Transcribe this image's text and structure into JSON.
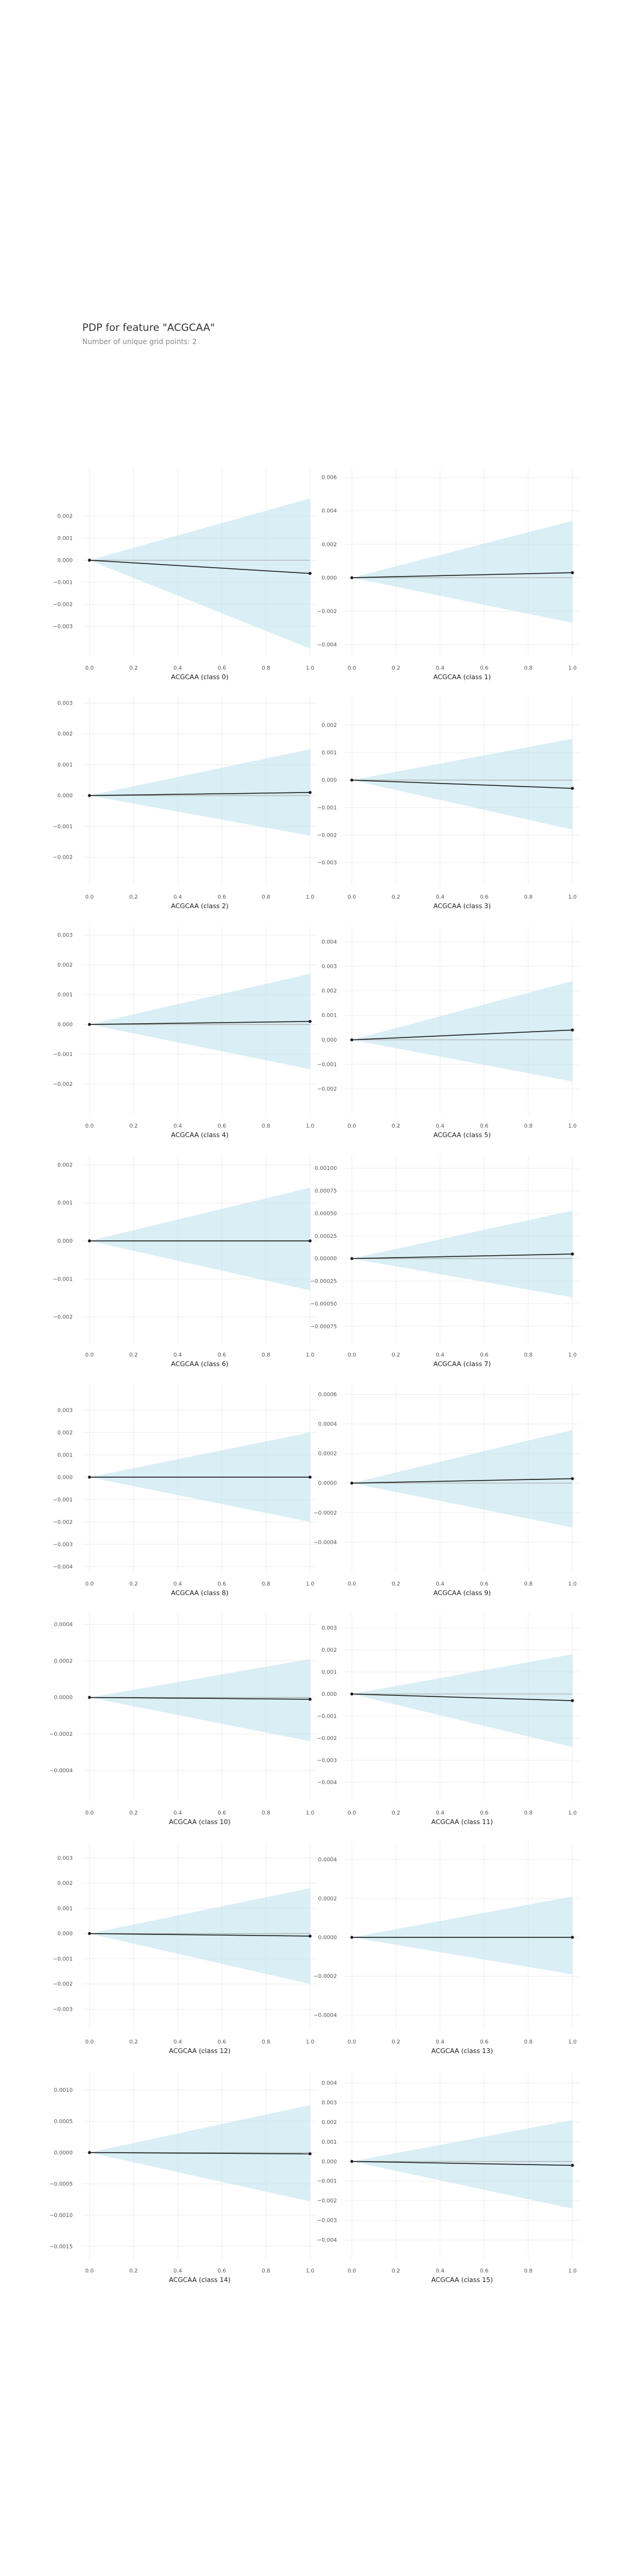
{
  "header": {
    "title": "PDP for feature \"ACGCAA\"",
    "subtitle": "Number of unique grid points: 2"
  },
  "colors": {
    "band": "#bfe2ee",
    "line": "#1a1a1a",
    "reference": "#b0b0b0",
    "grid": "#eeeeee"
  },
  "chart_data": [
    {
      "type": "line",
      "xlabel": "ACGCAA (class 0)",
      "x": [
        0,
        1
      ],
      "values": [
        0,
        -0.0006
      ],
      "upper": [
        0,
        0.0028
      ],
      "lower": [
        0,
        -0.004
      ],
      "ylim": [
        -0.0042,
        0.0039
      ],
      "yticks": [
        0.002,
        0.001,
        0.0,
        -0.001,
        -0.002,
        -0.003
      ],
      "ytick_labels": [
        "0.002",
        "0.001",
        "0.000",
        "−0.001",
        "−0.002",
        "−0.003"
      ],
      "xticks": [
        0,
        0.2,
        0.4,
        0.6,
        0.8,
        1.0
      ],
      "xtick_labels": [
        "0.0",
        "0.2",
        "0.4",
        "0.6",
        "0.8",
        "1.0"
      ]
    },
    {
      "type": "line",
      "xlabel": "ACGCAA (class 1)",
      "x": [
        0,
        1
      ],
      "values": [
        0,
        0.0003
      ],
      "upper": [
        0,
        0.0034
      ],
      "lower": [
        0,
        -0.0027
      ],
      "ylim": [
        -0.0045,
        0.0062
      ],
      "yticks": [
        0.006,
        0.004,
        0.002,
        0.0,
        -0.002,
        -0.004
      ],
      "ytick_labels": [
        "0.006",
        "0.004",
        "0.002",
        "0.000",
        "−0.002",
        "−0.004"
      ],
      "xticks": [
        0,
        0.2,
        0.4,
        0.6,
        0.8,
        1.0
      ],
      "xtick_labels": [
        "0.0",
        "0.2",
        "0.4",
        "0.6",
        "0.8",
        "1.0"
      ]
    },
    {
      "type": "line",
      "xlabel": "ACGCAA (class 2)",
      "x": [
        0,
        1
      ],
      "values": [
        0,
        0.0001
      ],
      "upper": [
        0,
        0.0015
      ],
      "lower": [
        0,
        -0.0013
      ],
      "ylim": [
        -0.0028,
        0.003
      ],
      "yticks": [
        0.003,
        0.002,
        0.001,
        0.0,
        -0.001,
        -0.002
      ],
      "ytick_labels": [
        "0.003",
        "0.002",
        "0.001",
        "0.000",
        "−0.001",
        "−0.002"
      ],
      "xticks": [
        0,
        0.2,
        0.4,
        0.6,
        0.8,
        1.0
      ],
      "xtick_labels": [
        "0.0",
        "0.2",
        "0.4",
        "0.6",
        "0.8",
        "1.0"
      ]
    },
    {
      "type": "line",
      "xlabel": "ACGCAA (class 3)",
      "x": [
        0,
        1
      ],
      "values": [
        0,
        -0.0003
      ],
      "upper": [
        0,
        0.0015
      ],
      "lower": [
        0,
        -0.0018
      ],
      "ylim": [
        -0.0037,
        0.0028
      ],
      "yticks": [
        0.002,
        0.001,
        0.0,
        -0.001,
        -0.002,
        -0.003
      ],
      "ytick_labels": [
        "0.002",
        "0.001",
        "0.000",
        "−0.001",
        "−0.002",
        "−0.003"
      ],
      "xticks": [
        0,
        0.2,
        0.4,
        0.6,
        0.8,
        1.0
      ],
      "xtick_labels": [
        "0.0",
        "0.2",
        "0.4",
        "0.6",
        "0.8",
        "1.0"
      ]
    },
    {
      "type": "line",
      "xlabel": "ACGCAA (class 4)",
      "x": [
        0,
        1
      ],
      "values": [
        0,
        0.0001
      ],
      "upper": [
        0,
        0.0017
      ],
      "lower": [
        0,
        -0.0015
      ],
      "ylim": [
        -0.0029,
        0.0031
      ],
      "yticks": [
        0.003,
        0.002,
        0.001,
        0.0,
        -0.001,
        -0.002
      ],
      "ytick_labels": [
        "0.003",
        "0.002",
        "0.001",
        "0.000",
        "−0.001",
        "−0.002"
      ],
      "xticks": [
        0,
        0.2,
        0.4,
        0.6,
        0.8,
        1.0
      ],
      "xtick_labels": [
        "0.0",
        "0.2",
        "0.4",
        "0.6",
        "0.8",
        "1.0"
      ]
    },
    {
      "type": "line",
      "xlabel": "ACGCAA (class 5)",
      "x": [
        0,
        1
      ],
      "values": [
        0,
        0.0004
      ],
      "upper": [
        0,
        0.0024
      ],
      "lower": [
        0,
        -0.0017
      ],
      "ylim": [
        -0.0029,
        0.0044
      ],
      "yticks": [
        0.004,
        0.003,
        0.002,
        0.001,
        0.0,
        -0.001,
        -0.002
      ],
      "ytick_labels": [
        "0.004",
        "0.003",
        "0.002",
        "0.001",
        "0.000",
        "−0.001",
        "−0.002"
      ],
      "xticks": [
        0,
        0.2,
        0.4,
        0.6,
        0.8,
        1.0
      ],
      "xtick_labels": [
        "0.0",
        "0.2",
        "0.4",
        "0.6",
        "0.8",
        "1.0"
      ]
    },
    {
      "type": "line",
      "xlabel": "ACGCAA (class 6)",
      "x": [
        0,
        1
      ],
      "values": [
        0,
        0.0
      ],
      "upper": [
        0,
        0.0014
      ],
      "lower": [
        0,
        -0.0013
      ],
      "ylim": [
        -0.0026,
        0.0021
      ],
      "yticks": [
        0.002,
        0.001,
        0.0,
        -0.001,
        -0.002
      ],
      "ytick_labels": [
        "0.002",
        "0.001",
        "0.000",
        "−0.001",
        "−0.002"
      ],
      "xticks": [
        0,
        0.2,
        0.4,
        0.6,
        0.8,
        1.0
      ],
      "xtick_labels": [
        "0.0",
        "0.2",
        "0.4",
        "0.6",
        "0.8",
        "1.0"
      ]
    },
    {
      "type": "line",
      "xlabel": "ACGCAA (class 7)",
      "x": [
        0,
        1
      ],
      "values": [
        0,
        5e-05
      ],
      "upper": [
        0,
        0.00053
      ],
      "lower": [
        0,
        -0.00043
      ],
      "ylim": [
        -0.0009,
        0.00108
      ],
      "yticks": [
        0.001,
        0.00075,
        0.0005,
        0.00025,
        0.0,
        -0.00025,
        -0.0005,
        -0.00075
      ],
      "ytick_labels": [
        "0.00100",
        "0.00075",
        "0.00050",
        "0.00025",
        "0.00000",
        "−0.00025",
        "−0.00050",
        "−0.00075"
      ],
      "xticks": [
        0,
        0.2,
        0.4,
        0.6,
        0.8,
        1.0
      ],
      "xtick_labels": [
        "0.0",
        "0.2",
        "0.4",
        "0.6",
        "0.8",
        "1.0"
      ]
    },
    {
      "type": "line",
      "xlabel": "ACGCAA (class 8)",
      "x": [
        0,
        1
      ],
      "values": [
        0,
        0.0
      ],
      "upper": [
        0,
        0.002
      ],
      "lower": [
        0,
        -0.002
      ],
      "ylim": [
        -0.0041,
        0.0039
      ],
      "yticks": [
        0.003,
        0.002,
        0.001,
        0.0,
        -0.001,
        -0.002,
        -0.003,
        -0.004
      ],
      "ytick_labels": [
        "0.003",
        "0.002",
        "0.001",
        "0.000",
        "−0.001",
        "−0.002",
        "−0.003",
        "−0.004"
      ],
      "xticks": [
        0,
        0.2,
        0.4,
        0.6,
        0.8,
        1.0
      ],
      "xtick_labels": [
        "0.0",
        "0.2",
        "0.4",
        "0.6",
        "0.8",
        "1.0"
      ]
    },
    {
      "type": "line",
      "xlabel": "ACGCAA (class 9)",
      "x": [
        0,
        1
      ],
      "values": [
        0,
        3e-05
      ],
      "upper": [
        0,
        0.00036
      ],
      "lower": [
        0,
        -0.0003
      ],
      "ylim": [
        -0.00058,
        0.00063
      ],
      "yticks": [
        0.0006,
        0.0004,
        0.0002,
        0.0,
        -0.0002,
        -0.0004
      ],
      "ytick_labels": [
        "0.0006",
        "0.0004",
        "0.0002",
        "0.0000",
        "−0.0002",
        "−0.0004"
      ],
      "xticks": [
        0,
        0.2,
        0.4,
        0.6,
        0.8,
        1.0
      ],
      "xtick_labels": [
        "0.0",
        "0.2",
        "0.4",
        "0.6",
        "0.8",
        "1.0"
      ]
    },
    {
      "type": "line",
      "xlabel": "ACGCAA (class 10)",
      "x": [
        0,
        1
      ],
      "values": [
        0,
        -1e-05
      ],
      "upper": [
        0,
        0.00021
      ],
      "lower": [
        0,
        -0.00024
      ],
      "ylim": [
        -0.00055,
        0.00043
      ],
      "yticks": [
        0.0004,
        0.0002,
        0.0,
        -0.0002,
        -0.0004
      ],
      "ytick_labels": [
        "0.0004",
        "0.0002",
        "0.0000",
        "−0.0002",
        "−0.0004"
      ],
      "xticks": [
        0,
        0.2,
        0.4,
        0.6,
        0.8,
        1.0
      ],
      "xtick_labels": [
        "0.0",
        "0.2",
        "0.4",
        "0.6",
        "0.8",
        "1.0"
      ]
    },
    {
      "type": "line",
      "xlabel": "ACGCAA (class 11)",
      "x": [
        0,
        1
      ],
      "values": [
        0,
        -0.0003
      ],
      "upper": [
        0,
        0.0018
      ],
      "lower": [
        0,
        -0.0024
      ],
      "ylim": [
        -0.0047,
        0.0034
      ],
      "yticks": [
        0.003,
        0.002,
        0.001,
        0.0,
        -0.001,
        -0.002,
        -0.003,
        -0.004
      ],
      "ytick_labels": [
        "0.003",
        "0.002",
        "0.001",
        "0.000",
        "−0.001",
        "−0.002",
        "−0.003",
        "−0.004"
      ],
      "xticks": [
        0,
        0.2,
        0.4,
        0.6,
        0.8,
        1.0
      ],
      "xtick_labels": [
        "0.0",
        "0.2",
        "0.4",
        "0.6",
        "0.8",
        "1.0"
      ]
    },
    {
      "type": "line",
      "xlabel": "ACGCAA (class 12)",
      "x": [
        0,
        1
      ],
      "values": [
        0,
        -0.0001
      ],
      "upper": [
        0,
        0.0018
      ],
      "lower": [
        0,
        -0.002
      ],
      "ylim": [
        -0.0037,
        0.0034
      ],
      "yticks": [
        0.003,
        0.002,
        0.001,
        0.0,
        -0.001,
        -0.002,
        -0.003
      ],
      "ytick_labels": [
        "0.003",
        "0.002",
        "0.001",
        "0.000",
        "−0.001",
        "−0.002",
        "−0.003"
      ],
      "xticks": [
        0,
        0.2,
        0.4,
        0.6,
        0.8,
        1.0
      ],
      "xtick_labels": [
        "0.0",
        "0.2",
        "0.4",
        "0.6",
        "0.8",
        "1.0"
      ]
    },
    {
      "type": "line",
      "xlabel": "ACGCAA (class 13)",
      "x": [
        0,
        1
      ],
      "values": [
        0,
        0.0
      ],
      "upper": [
        0,
        0.00021
      ],
      "lower": [
        0,
        -0.00019
      ],
      "ylim": [
        -0.00046,
        0.00046
      ],
      "yticks": [
        0.0004,
        0.0002,
        0.0,
        -0.0002,
        -0.0004
      ],
      "ytick_labels": [
        "0.0004",
        "0.0002",
        "0.0000",
        "−0.0002",
        "−0.0004"
      ],
      "xticks": [
        0,
        0.2,
        0.4,
        0.6,
        0.8,
        1.0
      ],
      "xtick_labels": [
        "0.0",
        "0.2",
        "0.4",
        "0.6",
        "0.8",
        "1.0"
      ]
    },
    {
      "type": "line",
      "xlabel": "ACGCAA (class 14)",
      "x": [
        0,
        1
      ],
      "values": [
        0,
        -2e-05
      ],
      "upper": [
        0,
        0.00076
      ],
      "lower": [
        0,
        -0.00078
      ],
      "ylim": [
        -0.00165,
        0.00121
      ],
      "yticks": [
        0.001,
        0.0005,
        0.0,
        -0.0005,
        -0.001,
        -0.0015
      ],
      "ytick_labels": [
        "0.0010",
        "0.0005",
        "0.0000",
        "−0.0005",
        "−0.0010",
        "−0.0015"
      ],
      "xticks": [
        0,
        0.2,
        0.4,
        0.6,
        0.8,
        1.0
      ],
      "xtick_labels": [
        "0.0",
        "0.2",
        "0.4",
        "0.6",
        "0.8",
        "1.0"
      ]
    },
    {
      "type": "line",
      "xlabel": "ACGCAA (class 15)",
      "x": [
        0,
        1
      ],
      "values": [
        0,
        -0.0002
      ],
      "upper": [
        0,
        0.0021
      ],
      "lower": [
        0,
        -0.0024
      ],
      "ylim": [
        -0.0048,
        0.0043
      ],
      "yticks": [
        0.004,
        0.003,
        0.002,
        0.001,
        0.0,
        -0.001,
        -0.002,
        -0.003,
        -0.004
      ],
      "ytick_labels": [
        "0.004",
        "0.003",
        "0.002",
        "0.001",
        "0.000",
        "−0.001",
        "−0.002",
        "−0.003",
        "−0.004"
      ],
      "xticks": [
        0,
        0.2,
        0.4,
        0.6,
        0.8,
        1.0
      ],
      "xtick_labels": [
        "0.0",
        "0.2",
        "0.4",
        "0.6",
        "0.8",
        "1.0"
      ]
    }
  ]
}
